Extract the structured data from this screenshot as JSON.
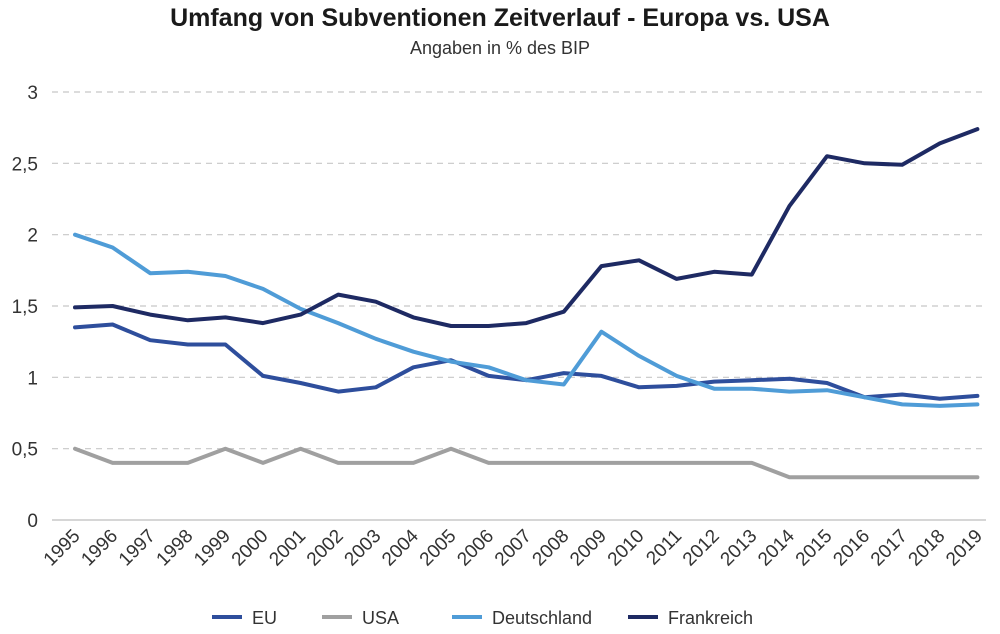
{
  "chart_data": {
    "type": "line",
    "title": "Umfang von Subventionen Zeitverlauf - Europa vs. USA",
    "subtitle": "Angaben in % des BIP",
    "xlabel": "",
    "ylabel": "",
    "ylim": [
      0,
      3
    ],
    "y_ticks": [
      "0",
      "0,5",
      "1",
      "1,5",
      "2",
      "2,5",
      "3"
    ],
    "y_tick_values": [
      0,
      0.5,
      1,
      1.5,
      2,
      2.5,
      3
    ],
    "grid": true,
    "legend_position": "bottom",
    "categories": [
      "1995",
      "1996",
      "1997",
      "1998",
      "1999",
      "2000",
      "2001",
      "2002",
      "2003",
      "2004",
      "2005",
      "2006",
      "2007",
      "2008",
      "2009",
      "2010",
      "2011",
      "2012",
      "2013",
      "2014",
      "2015",
      "2016",
      "2017",
      "2018",
      "2019"
    ],
    "series": [
      {
        "name": "EU",
        "color": "#2E4E9C",
        "values": [
          1.35,
          1.37,
          1.26,
          1.23,
          1.23,
          1.01,
          0.96,
          0.9,
          0.93,
          1.07,
          1.12,
          1.01,
          0.98,
          1.03,
          1.01,
          0.93,
          0.94,
          0.97,
          0.98,
          0.99,
          0.96,
          0.86,
          0.88,
          0.85,
          0.87
        ]
      },
      {
        "name": "USA",
        "color": "#A0A0A0",
        "values": [
          0.5,
          0.4,
          0.4,
          0.4,
          0.5,
          0.4,
          0.5,
          0.4,
          0.4,
          0.4,
          0.5,
          0.4,
          0.4,
          0.4,
          0.4,
          0.4,
          0.4,
          0.4,
          0.4,
          0.3,
          0.3,
          0.3,
          0.3,
          0.3,
          0.3
        ]
      },
      {
        "name": "Deutschland",
        "color": "#4F9CD7",
        "values": [
          2.0,
          1.91,
          1.73,
          1.74,
          1.71,
          1.62,
          1.48,
          1.38,
          1.27,
          1.18,
          1.11,
          1.07,
          0.98,
          0.95,
          1.32,
          1.15,
          1.01,
          0.92,
          0.92,
          0.9,
          0.91,
          0.86,
          0.81,
          0.8,
          0.81
        ]
      },
      {
        "name": "Frankreich",
        "color": "#1E2A63",
        "values": [
          1.49,
          1.5,
          1.44,
          1.4,
          1.42,
          1.38,
          1.44,
          1.58,
          1.53,
          1.42,
          1.36,
          1.36,
          1.38,
          1.46,
          1.78,
          1.82,
          1.69,
          1.74,
          1.72,
          2.2,
          2.55,
          2.5,
          2.49,
          2.64,
          2.74
        ]
      }
    ]
  }
}
